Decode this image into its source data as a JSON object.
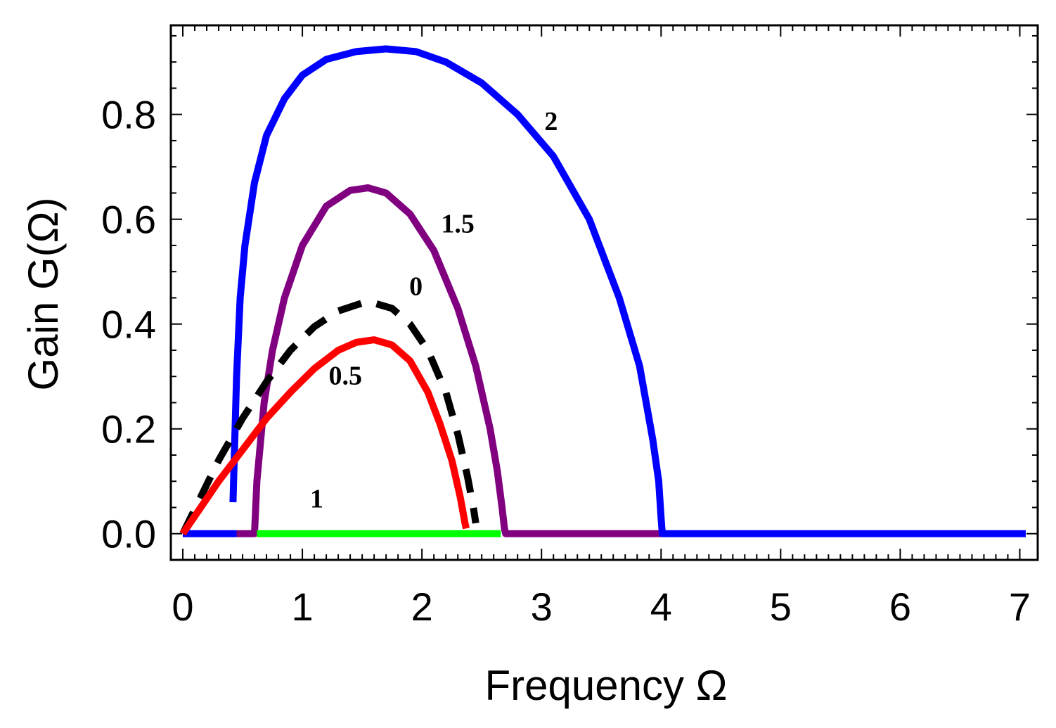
{
  "chart_data": {
    "type": "line",
    "xlabel": "Frequency Ω",
    "ylabel": "Gain G(Ω)",
    "xlim": [
      -0.1,
      7.15
    ],
    "ylim": [
      -0.05,
      0.97
    ],
    "xticks": [
      "0",
      "1",
      "2",
      "3",
      "4",
      "5",
      "6",
      "7"
    ],
    "yticks": [
      "0.0",
      "0.2",
      "0.4",
      "0.6",
      "0.8"
    ],
    "series": [
      {
        "name": "0",
        "color": "#000000",
        "dashed": true,
        "x": [
          0.0,
          0.15,
          0.3,
          0.5,
          0.7,
          0.9,
          1.1,
          1.3,
          1.5,
          1.6,
          1.75,
          1.9,
          2.05,
          2.2,
          2.3,
          2.38,
          2.43,
          2.45
        ],
        "y": [
          0.0,
          0.07,
          0.14,
          0.22,
          0.29,
          0.35,
          0.395,
          0.425,
          0.44,
          0.44,
          0.43,
          0.4,
          0.35,
          0.27,
          0.19,
          0.11,
          0.05,
          0.02
        ]
      },
      {
        "name": "0.5",
        "color": "#ff0000",
        "dashed": false,
        "x": [
          0.0,
          0.15,
          0.3,
          0.5,
          0.7,
          0.9,
          1.1,
          1.3,
          1.45,
          1.6,
          1.75,
          1.9,
          2.05,
          2.15,
          2.25,
          2.32,
          2.36,
          2.37
        ],
        "y": [
          0.0,
          0.05,
          0.1,
          0.16,
          0.22,
          0.27,
          0.315,
          0.35,
          0.365,
          0.37,
          0.36,
          0.33,
          0.27,
          0.21,
          0.14,
          0.07,
          0.02,
          0.01
        ]
      },
      {
        "name": "1",
        "color": "#00ff00",
        "dashed": false,
        "x": [
          0.62,
          2.66
        ],
        "y": [
          0.0,
          0.0
        ]
      },
      {
        "name": "1.5",
        "color": "#800080",
        "dashed": false,
        "x": [
          0.45,
          0.6,
          0.62,
          0.68,
          0.75,
          0.85,
          1.0,
          1.2,
          1.4,
          1.55,
          1.7,
          1.9,
          2.1,
          2.3,
          2.45,
          2.57,
          2.63,
          2.67,
          2.69,
          2.7,
          4.0
        ],
        "y": [
          0.0,
          0.0,
          0.1,
          0.25,
          0.35,
          0.45,
          0.55,
          0.625,
          0.655,
          0.66,
          0.65,
          0.61,
          0.54,
          0.43,
          0.32,
          0.2,
          0.12,
          0.05,
          0.01,
          0.0,
          0.0
        ]
      },
      {
        "name": "2",
        "color": "#0000ff",
        "dashed": false,
        "x": [
          0.42,
          0.45,
          0.48,
          0.52,
          0.6,
          0.7,
          0.85,
          1.0,
          1.2,
          1.45,
          1.7,
          1.95,
          2.2,
          2.5,
          2.8,
          3.1,
          3.4,
          3.65,
          3.82,
          3.93,
          3.98,
          4.0,
          4.01,
          7.05
        ],
        "y": [
          0.06,
          0.3,
          0.45,
          0.55,
          0.67,
          0.76,
          0.83,
          0.875,
          0.905,
          0.92,
          0.925,
          0.92,
          0.9,
          0.86,
          0.8,
          0.72,
          0.6,
          0.45,
          0.32,
          0.18,
          0.1,
          0.03,
          0.0,
          0.0
        ]
      },
      {
        "name": "2",
        "color": "#0000ff",
        "dashed": false,
        "x": [
          0.0,
          0.45
        ],
        "y": [
          0.0,
          0.0
        ]
      }
    ],
    "annotations": [
      {
        "text": "2",
        "x": 3.08,
        "y": 0.77
      },
      {
        "text": "1.5",
        "x": 2.3,
        "y": 0.575
      },
      {
        "text": "0",
        "x": 1.95,
        "y": 0.455
      },
      {
        "text": "0.5",
        "x": 1.36,
        "y": 0.285
      },
      {
        "text": "1",
        "x": 1.12,
        "y": 0.05
      }
    ]
  }
}
